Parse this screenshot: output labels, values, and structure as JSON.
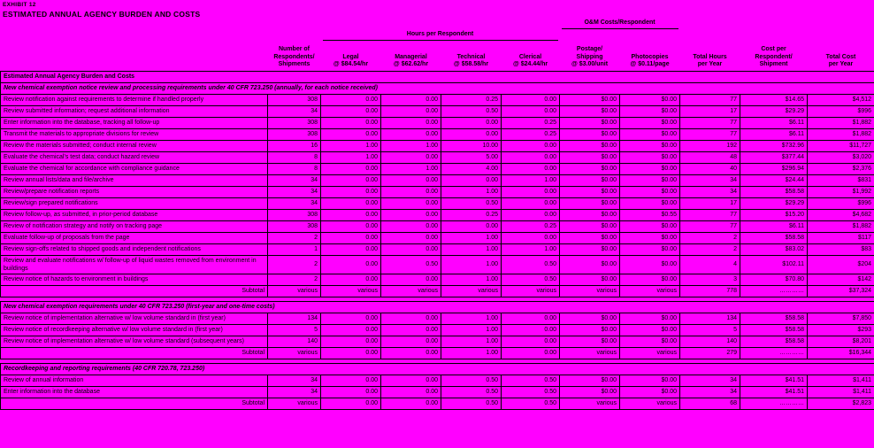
{
  "exhibit_label": "EXHIBIT 12",
  "title": "ESTIMATED ANNUAL AGENCY BURDEN AND COSTS",
  "columns": {
    "respondents": "Number of\nRespondents/\nShipments",
    "hours_group": "Hours per Respondent",
    "om_group": "O&M Costs/Respondent",
    "legal": "Legal\n@ $84.54/hr",
    "managerial": "Managerial\n@ $62.62/hr",
    "technical": "Technical\n@ $58.58/hr",
    "clerical": "Clerical\n@ $24.44/hr",
    "postage": "Postage/\nShipping\n@ $3.00/unit",
    "photocopies": "Photocopies\n@ $0.11/page",
    "total_hours": "Total Hours\nper Year",
    "cost_per": "Cost per\nRespondent/\nShipment",
    "total_cost": "Total Cost\nper Year"
  },
  "sections": {
    "s1": [
      {
        "band": true,
        "cls": "band",
        "name": "section-title",
        "label": "Estimated Annual Agency Burden and Costs"
      },
      {
        "band": true,
        "cls": "subhead",
        "name": "section-subtitle",
        "label": "New chemical exemption notice review and processing requirements under 40 CFR 723.250 (annually, for each notice received)"
      },
      {
        "label": "Review notification against requirements to determine if handled properly",
        "values": [
          "308",
          "0.00",
          "0.00",
          "0.25",
          "0.00",
          "$0.00",
          "$0.00",
          "77",
          "$14.65",
          "$4,512"
        ]
      },
      {
        "label": "Review submitted information; request additional information",
        "values": [
          "34",
          "0.00",
          "0.00",
          "0.50",
          "0.00",
          "$0.00",
          "$0.00",
          "17",
          "$29.29",
          "$996"
        ]
      },
      {
        "label": "Enter information into the database, tracking all follow-up",
        "values": [
          "308",
          "0.00",
          "0.00",
          "0.00",
          "0.25",
          "$0.00",
          "$0.00",
          "77",
          "$6.11",
          "$1,882"
        ]
      },
      {
        "label": "Transmit the materials to appropriate divisions for review",
        "values": [
          "308",
          "0.00",
          "0.00",
          "0.00",
          "0.25",
          "$0.00",
          "$0.00",
          "77",
          "$6.11",
          "$1,882"
        ]
      },
      {
        "label": "Review the materials submitted; conduct internal review",
        "values": [
          "16",
          "1.00",
          "1.00",
          "10.00",
          "0.00",
          "$0.00",
          "$0.00",
          "192",
          "$732.96",
          "$11,727"
        ]
      },
      {
        "label": "Evaluate the chemical's test data; conduct hazard review",
        "values": [
          "8",
          "1.00",
          "0.00",
          "5.00",
          "0.00",
          "$0.00",
          "$0.00",
          "48",
          "$377.44",
          "$3,020"
        ]
      },
      {
        "label": "Evaluate the chemical for accordance with compliance guidance",
        "values": [
          "8",
          "0.00",
          "1.00",
          "4.00",
          "0.00",
          "$0.00",
          "$0.00",
          "40",
          "$296.94",
          "$2,376"
        ]
      },
      {
        "label": "Review annual lists/data and file/archive",
        "values": [
          "34",
          "0.00",
          "0.00",
          "0.00",
          "1.00",
          "$0.00",
          "$0.00",
          "34",
          "$24.44",
          "$831"
        ]
      },
      {
        "label": "Review/prepare notification reports",
        "values": [
          "34",
          "0.00",
          "0.00",
          "1.00",
          "0.00",
          "$0.00",
          "$0.00",
          "34",
          "$58.58",
          "$1,992"
        ]
      },
      {
        "label": "Review/sign prepared notifications",
        "values": [
          "34",
          "0.00",
          "0.00",
          "0.50",
          "0.00",
          "$0.00",
          "$0.00",
          "17",
          "$29.29",
          "$996"
        ]
      },
      {
        "label": "Review follow-up, as submitted, in prior-period database",
        "values": [
          "308",
          "0.00",
          "0.00",
          "0.25",
          "0.00",
          "$0.00",
          "$0.55",
          "77",
          "$15.20",
          "$4,682"
        ]
      },
      {
        "label": "Review of notification strategy and notify on tracking page",
        "values": [
          "308",
          "0.00",
          "0.00",
          "0.00",
          "0.25",
          "$0.00",
          "$0.00",
          "77",
          "$6.11",
          "$1,882"
        ]
      },
      {
        "label": "Evaluate follow-up of proposals from the page",
        "values": [
          "2",
          "0.00",
          "0.00",
          "1.00",
          "0.00",
          "$0.00",
          "$0.00",
          "2",
          "$58.58",
          "$117"
        ]
      },
      {
        "label": "Review sign-offs related to shipped goods and independent notifications",
        "values": [
          "1",
          "0.00",
          "0.00",
          "1.00",
          "1.00",
          "$0.00",
          "$0.00",
          "2",
          "$83.02",
          "$83"
        ]
      },
      {
        "label": "Review and evaluate notifications w/ follow-up of liquid wastes removed from environment in buildings",
        "values": [
          "2",
          "0.00",
          "0.50",
          "1.00",
          "0.50",
          "$0.00",
          "$0.00",
          "4",
          "$102.11",
          "$204"
        ]
      },
      {
        "label": "Review notice of hazards to environment in buildings",
        "values": [
          "2",
          "0.00",
          "0.00",
          "1.00",
          "0.50",
          "$0.00",
          "$0.00",
          "3",
          "$70.80",
          "$142"
        ]
      },
      {
        "cls": "subtotal",
        "label": "Subtotal",
        "values": [
          "various",
          "various",
          "various",
          "various",
          "various",
          "various",
          "various",
          "778",
          "…………",
          "$37,324"
        ]
      }
    ],
    "s2": [
      {
        "band": true,
        "cls": "subhead",
        "name": "section-subtitle",
        "label": "New chemical exemption requirements under 40 CFR 723.250 (first-year and one-time costs)"
      },
      {
        "label": "Review notice of implementation alternative w/ low volume standard in (first year)",
        "values": [
          "134",
          "0.00",
          "0.00",
          "1.00",
          "0.00",
          "$0.00",
          "$0.00",
          "134",
          "$58.58",
          "$7,850"
        ]
      },
      {
        "label": "Review notice of recordkeeping alternative w/ low volume standard in (first year)",
        "values": [
          "5",
          "0.00",
          "0.00",
          "1.00",
          "0.00",
          "$0.00",
          "$0.00",
          "5",
          "$58.58",
          "$293"
        ]
      },
      {
        "label": "Review notice of implementation alternative w/ low volume standard (subsequent years)",
        "values": [
          "140",
          "0.00",
          "0.00",
          "1.00",
          "0.00",
          "$0.00",
          "$0.00",
          "140",
          "$58.58",
          "$8,201"
        ]
      },
      {
        "cls": "subtotal",
        "label": "Subtotal",
        "values": [
          "various",
          "0.00",
          "0.00",
          "1.00",
          "0.00",
          "various",
          "various",
          "279",
          "…………",
          "$16,344"
        ]
      }
    ],
    "s3": [
      {
        "band": true,
        "cls": "subhead",
        "name": "section-subtitle",
        "label": "Recordkeeping and reporting requirements (40 CFR 720.78, 723.250)"
      },
      {
        "label": "Review of annual information",
        "values": [
          "34",
          "0.00",
          "0.00",
          "0.50",
          "0.50",
          "$0.00",
          "$0.00",
          "34",
          "$41.51",
          "$1,411"
        ]
      },
      {
        "label": "Enter information into the database",
        "values": [
          "34",
          "0.00",
          "0.00",
          "0.50",
          "0.50",
          "$0.00",
          "$0.00",
          "34",
          "$41.51",
          "$1,411"
        ]
      },
      {
        "cls": "subtotal",
        "label": "Subtotal",
        "values": [
          "various",
          "0.00",
          "0.00",
          "0.50",
          "0.50",
          "various",
          "various",
          "68",
          "…………",
          "$2,823"
        ]
      }
    ]
  }
}
